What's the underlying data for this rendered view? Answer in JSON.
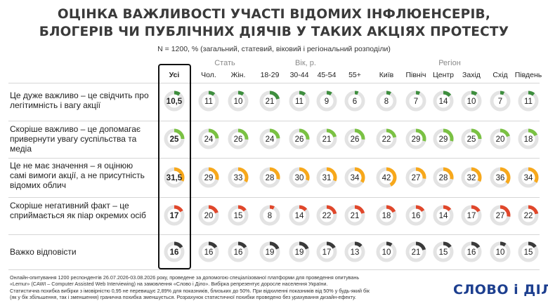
{
  "title_line1": "ОЦІНКА ВАЖЛИВОСТІ УЧАСТІ ВІДОМИХ ІНФЛЮЕНСЕРІВ,",
  "title_line2": "БЛОГЕРІВ ЧИ ПУБЛІЧНИХ ДІЯЧІВ У ТАКИХ АКЦІЯХ ПРОТЕСТУ",
  "subtitle": "N = 1200, % (загальний, статевий, віковий і регіональний розподіли)",
  "groups": {
    "sex": "Стать",
    "age": "Вік, р.",
    "region": "Регіон"
  },
  "colors": {
    "track": "#e3e3e3",
    "row_colors": [
      "#3e8e3e",
      "#7ac143",
      "#f7a81b",
      "#e0472b",
      "#3a3a3a"
    ]
  },
  "footer": {
    "line1": "Онлайн-опитування 1200 респондентів 26.07.2026-03.08.2026 року, проведене за допомогою спеціалізованої платформи для проведення опитувань",
    "line2": "«Lemur» (CAWI – Computer Assisted Web Interviewing) на замовлення «Слово і Діло». Вибірка репрезентує доросле населення України.",
    "line3": "Статистична похибка вибірки з імовірністю 0,95 не перевищує 2,89% для показників, близьких до 50%. При відхиленні показників від 50% у будь-який бік",
    "line4": "(як у бік збільшення, так і зменшення) гранична похибка зменшується. Розрахунок статистичної похибки проведено без урахування дизайн-ефекту."
  },
  "logo": "СЛОВО і ДІЛО",
  "chart_data": {
    "type": "table",
    "columns": [
      "Усі",
      "Чол.",
      "Жін.",
      "18-29",
      "30-44",
      "45-54",
      "55+",
      "Київ",
      "Північ",
      "Центр",
      "Захід",
      "Схід",
      "Південь"
    ],
    "rows": [
      {
        "label": "Це дуже важливо – це свідчить про легітимність і вагу акції",
        "labels": [
          "10,5",
          "11",
          "10",
          "21",
          "11",
          "9",
          "6",
          "8",
          "7",
          "14",
          "10",
          "7",
          "11"
        ],
        "values": [
          10.5,
          11,
          10,
          21,
          11,
          9,
          6,
          8,
          7,
          14,
          10,
          7,
          11
        ]
      },
      {
        "label": "Скоріше важливо – це допомагає привернути увагу суспільства та медіа",
        "labels": [
          "25",
          "24",
          "26",
          "24",
          "26",
          "21",
          "26",
          "22",
          "29",
          "29",
          "25",
          "20",
          "18"
        ],
        "values": [
          25,
          24,
          26,
          24,
          26,
          21,
          26,
          22,
          29,
          29,
          25,
          20,
          18
        ]
      },
      {
        "label": "Це не має значення – я оцінюю самі вимоги акції, а не присутність відомих облич",
        "labels": [
          "31,5",
          "29",
          "33",
          "28",
          "30",
          "31",
          "34",
          "42",
          "27",
          "28",
          "32",
          "36",
          "34"
        ],
        "values": [
          31.5,
          29,
          33,
          28,
          30,
          31,
          34,
          42,
          27,
          28,
          32,
          36,
          34
        ]
      },
      {
        "label": "Скоріше негативний факт – це сприймається як піар окремих осіб",
        "labels": [
          "17",
          "20",
          "15",
          "8",
          "14",
          "22",
          "21",
          "18",
          "16",
          "14",
          "17",
          "27",
          "22"
        ],
        "values": [
          17,
          20,
          15,
          8,
          14,
          22,
          21,
          18,
          16,
          14,
          17,
          27,
          22
        ]
      },
      {
        "label": "Важко відповісти",
        "labels": [
          "16",
          "16",
          "16",
          "19",
          "19",
          "17",
          "13",
          "10",
          "21",
          "15",
          "16",
          "10",
          "15"
        ],
        "values": [
          16,
          16,
          16,
          19,
          19,
          17,
          13,
          10,
          21,
          15,
          16,
          10,
          15
        ]
      }
    ]
  }
}
